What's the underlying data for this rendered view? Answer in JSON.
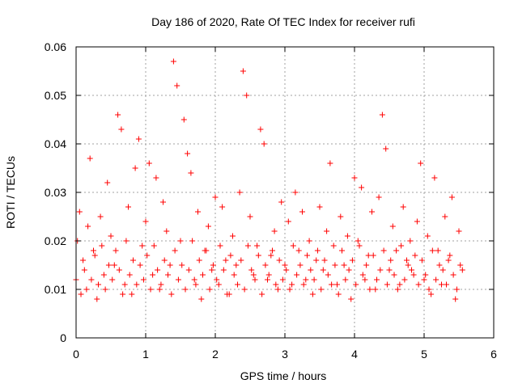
{
  "chart_data": {
    "type": "scatter",
    "title": "Day 186 of 2020, Rate Of TEC Index for receiver rufi",
    "xlabel": "GPS time / hours",
    "ylabel": "ROTI / TECUs",
    "xlim": [
      0,
      6
    ],
    "ylim": [
      0,
      0.06
    ],
    "x_ticks": [
      0,
      1,
      2,
      3,
      4,
      5,
      6
    ],
    "x_tick_labels": [
      "0",
      "1",
      "2",
      "3",
      "4",
      "5",
      "6"
    ],
    "y_ticks": [
      0,
      0.01,
      0.02,
      0.03,
      0.04,
      0.05,
      0.06
    ],
    "y_tick_labels": [
      "0",
      "0.01",
      "0.02",
      "0.03",
      "0.04",
      "0.05",
      "0.06"
    ],
    "grid": true,
    "legend": "none",
    "marker": "+",
    "color": "#ff0000",
    "series": [
      {
        "x": [
          0.0,
          0.05,
          0.1,
          0.15,
          0.2,
          0.25,
          0.3,
          0.35,
          0.4,
          0.45,
          0.5,
          0.55,
          0.6,
          0.65,
          0.7,
          0.75,
          0.8,
          0.85,
          0.9,
          0.95,
          1.0,
          1.05,
          1.1,
          1.15,
          1.2,
          1.25,
          1.3,
          1.35,
          1.4,
          1.45,
          1.5,
          1.55,
          1.6,
          1.65,
          1.7,
          1.75,
          1.8,
          1.85,
          1.9,
          1.95,
          2.0,
          2.05,
          2.1,
          2.15,
          2.2,
          2.25,
          2.3,
          2.35,
          2.4,
          2.45,
          2.5,
          2.55,
          2.6,
          2.65,
          2.7,
          2.75,
          2.8,
          2.85,
          2.9,
          2.95,
          3.0,
          3.05,
          3.1,
          3.15,
          3.2,
          3.25,
          3.3,
          3.35,
          3.4,
          3.45,
          3.5,
          3.55,
          3.6,
          3.65,
          3.7,
          3.75,
          3.8,
          3.85,
          3.9,
          3.95,
          4.0,
          4.05,
          4.1,
          4.15,
          4.2,
          4.25,
          4.3,
          4.35,
          4.4,
          4.45,
          4.5,
          4.55,
          4.6,
          4.65,
          4.7,
          4.75,
          4.8,
          4.85,
          4.9,
          4.95,
          5.0,
          5.05,
          5.1,
          5.15,
          5.2,
          5.25,
          5.3,
          5.35,
          5.4,
          5.45,
          5.5,
          5.55
        ],
        "y": [
          0.012,
          0.026,
          0.016,
          0.01,
          0.037,
          0.018,
          0.008,
          0.025,
          0.013,
          0.032,
          0.021,
          0.015,
          0.046,
          0.043,
          0.011,
          0.027,
          0.009,
          0.035,
          0.041,
          0.019,
          0.024,
          0.036,
          0.013,
          0.033,
          0.01,
          0.028,
          0.022,
          0.015,
          0.057,
          0.052,
          0.02,
          0.045,
          0.038,
          0.034,
          0.012,
          0.026,
          0.008,
          0.018,
          0.023,
          0.014,
          0.029,
          0.011,
          0.027,
          0.016,
          0.009,
          0.021,
          0.015,
          0.03,
          0.055,
          0.05,
          0.025,
          0.013,
          0.019,
          0.043,
          0.04,
          0.012,
          0.017,
          0.022,
          0.01,
          0.028,
          0.015,
          0.024,
          0.011,
          0.03,
          0.018,
          0.026,
          0.012,
          0.02,
          0.009,
          0.016,
          0.027,
          0.014,
          0.022,
          0.036,
          0.019,
          0.011,
          0.025,
          0.015,
          0.021,
          0.008,
          0.033,
          0.02,
          0.031,
          0.012,
          0.017,
          0.026,
          0.01,
          0.029,
          0.046,
          0.039,
          0.014,
          0.023,
          0.018,
          0.011,
          0.027,
          0.016,
          0.02,
          0.013,
          0.024,
          0.036,
          0.012,
          0.021,
          0.009,
          0.033,
          0.018,
          0.011,
          0.025,
          0.016,
          0.029,
          0.008,
          0.022,
          0.014
        ]
      },
      {
        "x": [
          0.02,
          0.07,
          0.12,
          0.17,
          0.22,
          0.27,
          0.32,
          0.37,
          0.42,
          0.47,
          0.52,
          0.57,
          0.62,
          0.67,
          0.72,
          0.77,
          0.82,
          0.87,
          0.92,
          0.97,
          1.02,
          1.07,
          1.12,
          1.17,
          1.22,
          1.27,
          1.32,
          1.37,
          1.42,
          1.47,
          1.52,
          1.57,
          1.62,
          1.67,
          1.72,
          1.77,
          1.82,
          1.87,
          1.92,
          1.97,
          2.02,
          2.07,
          2.12,
          2.17,
          2.22,
          2.27,
          2.32,
          2.37,
          2.42,
          2.47,
          2.52,
          2.57,
          2.62,
          2.67,
          2.72,
          2.77,
          2.82,
          2.87,
          2.92,
          2.97,
          3.02,
          3.07,
          3.12,
          3.17,
          3.22,
          3.27,
          3.32,
          3.37,
          3.42,
          3.47,
          3.52,
          3.57,
          3.62,
          3.67,
          3.72,
          3.77,
          3.82,
          3.87,
          3.92,
          3.97,
          4.02,
          4.07,
          4.12,
          4.17,
          4.22,
          4.27,
          4.32,
          4.37,
          4.42,
          4.47,
          4.52,
          4.57,
          4.62,
          4.67,
          4.72,
          4.77,
          4.82,
          4.87,
          4.92,
          4.97,
          5.02,
          5.07,
          5.12,
          5.17,
          5.22,
          5.27,
          5.32,
          5.37,
          5.42,
          5.47,
          5.52
        ],
        "y": [
          0.02,
          0.009,
          0.014,
          0.023,
          0.012,
          0.017,
          0.011,
          0.019,
          0.01,
          0.015,
          0.012,
          0.018,
          0.014,
          0.009,
          0.02,
          0.013,
          0.016,
          0.011,
          0.015,
          0.012,
          0.017,
          0.01,
          0.019,
          0.014,
          0.011,
          0.016,
          0.013,
          0.009,
          0.018,
          0.012,
          0.015,
          0.01,
          0.014,
          0.02,
          0.011,
          0.016,
          0.013,
          0.018,
          0.01,
          0.015,
          0.012,
          0.019,
          0.014,
          0.009,
          0.017,
          0.013,
          0.011,
          0.016,
          0.01,
          0.019,
          0.014,
          0.012,
          0.017,
          0.009,
          0.015,
          0.013,
          0.018,
          0.011,
          0.016,
          0.012,
          0.014,
          0.01,
          0.019,
          0.013,
          0.015,
          0.011,
          0.017,
          0.014,
          0.012,
          0.018,
          0.01,
          0.016,
          0.013,
          0.011,
          0.015,
          0.009,
          0.018,
          0.012,
          0.014,
          0.016,
          0.011,
          0.019,
          0.013,
          0.015,
          0.01,
          0.017,
          0.012,
          0.014,
          0.018,
          0.011,
          0.016,
          0.013,
          0.01,
          0.019,
          0.012,
          0.015,
          0.014,
          0.017,
          0.011,
          0.016,
          0.013,
          0.01,
          0.018,
          0.012,
          0.015,
          0.014,
          0.011,
          0.017,
          0.013,
          0.01,
          0.015
        ]
      }
    ]
  }
}
